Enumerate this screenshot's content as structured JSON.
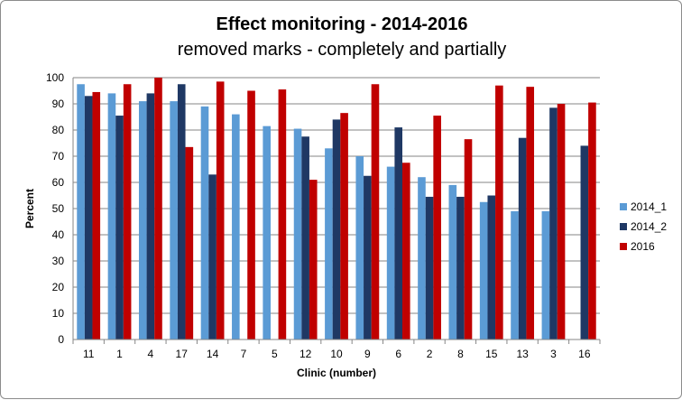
{
  "chart_data": {
    "type": "bar",
    "title": "Effect monitoring - 2014-2016",
    "subtitle": "removed marks - completely and partially",
    "xlabel": "Clinic (number)",
    "ylabel": "Percent",
    "ylim": [
      0,
      100
    ],
    "yticks": [
      0,
      10,
      20,
      30,
      40,
      50,
      60,
      70,
      80,
      90,
      100
    ],
    "grid": true,
    "legend_position": "right",
    "categories": [
      "11",
      "1",
      "4",
      "17",
      "14",
      "7",
      "5",
      "12",
      "10",
      "9",
      "6",
      "2",
      "8",
      "15",
      "13",
      "3",
      "16"
    ],
    "series": [
      {
        "name": "2014_1",
        "color": "#5B9BD5",
        "values": [
          97.5,
          94,
          91,
          91,
          89,
          86,
          81.5,
          80.5,
          73,
          70,
          66,
          62,
          59,
          52.5,
          49,
          49,
          null
        ]
      },
      {
        "name": "2014_2",
        "color": "#1F3864",
        "values": [
          93,
          85.5,
          94,
          97.5,
          63,
          null,
          null,
          77.5,
          84,
          62.5,
          81,
          54.5,
          54.5,
          55,
          77,
          88.5,
          74
        ]
      },
      {
        "name": "2016",
        "color": "#C00000",
        "values": [
          94.5,
          97.5,
          100,
          73.5,
          98.5,
          95,
          95.5,
          61,
          86.5,
          97.5,
          67.5,
          85.5,
          76.5,
          97,
          96.5,
          90,
          90.5
        ]
      }
    ]
  }
}
